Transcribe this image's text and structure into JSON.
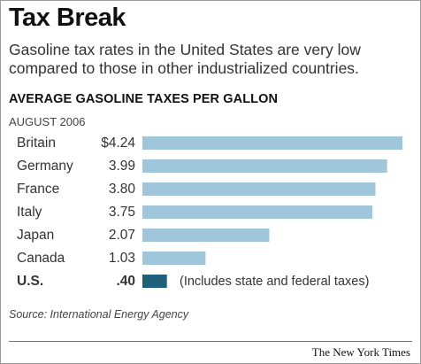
{
  "title": "Tax Break",
  "subtitle": "Gasoline tax rates in the United States are very low compared to those in other industrialized countries.",
  "footer": {
    "source": "Source: International Energy Agency",
    "credit": "The New York Times"
  },
  "colors": {
    "bar": "#9fc6db",
    "highlight_bar": "#1e5f7a",
    "text": "#222222"
  },
  "chart_data": {
    "type": "bar",
    "orientation": "horizontal",
    "title": "AVERAGE GASOLINE TAXES PER GALLON",
    "subtitle": "AUGUST 2006",
    "xlabel": "",
    "ylabel": "",
    "categories": [
      "Britain",
      "Germany",
      "France",
      "Italy",
      "Japan",
      "Canada",
      "U.S."
    ],
    "values": [
      4.24,
      3.99,
      3.8,
      3.75,
      2.07,
      1.03,
      0.4
    ],
    "value_labels": [
      "$4.24",
      "3.99",
      "3.80",
      "3.75",
      "2.07",
      "1.03",
      ".40"
    ],
    "xlim": [
      0,
      4.24
    ],
    "highlight": "U.S.",
    "annotation": "(Includes state and federal taxes)",
    "grid": false,
    "legend": "none"
  }
}
